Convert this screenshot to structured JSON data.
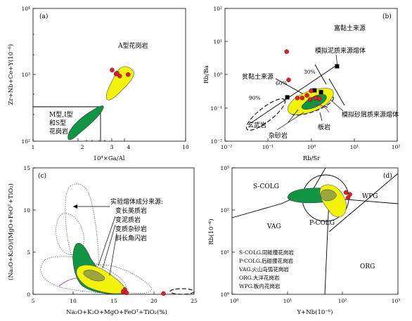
{
  "panels": {
    "a": {
      "tag": "(a)",
      "xlabel": "10⁴×Ga/Al",
      "ylabel": "Zr+Nb+Ce+Y(10⁻⁶)",
      "xticks": [
        "1",
        "2",
        "3",
        "4",
        "10"
      ],
      "yticks": [
        "10⁴",
        "10³",
        "10²"
      ],
      "field_a": "A型花岗岩",
      "field_misc": [
        "M型,I型",
        "和S型",
        "花岗岩"
      ]
    },
    "b": {
      "tag": "(b)",
      "xlabel": "Rb/Sr",
      "ylabel": "Rb/Ba",
      "xticks": [
        "10⁻²",
        "10⁻¹",
        "10⁰",
        "10¹",
        "10²"
      ],
      "yticks": [
        "10²",
        "10¹",
        "10⁰",
        "10⁻¹",
        "10⁻²"
      ],
      "labels": {
        "rich_clay": "富黏土来源",
        "poor_clay": "贫黏土来源",
        "pelite_melt": "模拟泥质来源熔体",
        "psammite_melt": "模拟砂屑质来源熔体",
        "basalt": "玄武岩",
        "greywacke": "杂砂岩",
        "slate": "板岩",
        "p30": "30%",
        "p60": "60%",
        "p90": "90%"
      }
    },
    "c": {
      "tag": "(c)",
      "xlabel": "Na₂O+K₂O+MgO+FeOᵀ+TiO₂(%)",
      "ylabel": "(Na₂O+K₂O)/(MgO+FeOᵀ+TiO₂)",
      "xticks": [
        "5",
        "10",
        "15",
        "20",
        "25"
      ],
      "yticks": [
        "0",
        "5",
        "10",
        "15"
      ],
      "legend_title": "实验熔体成分来源:",
      "legend_items": [
        "变长英质岩",
        "变泥质岩",
        "变质杂砂岩",
        "斜长角闪岩"
      ]
    },
    "d": {
      "tag": "(d)",
      "xlabel": "Y+Nb(10⁻⁶)",
      "ylabel": "Rb(10⁻⁶)",
      "xticks": [
        "10⁰",
        "10¹",
        "10²",
        "10³"
      ],
      "yticks": [
        "10³",
        "10²",
        "10¹",
        "10⁰"
      ],
      "fields": [
        "S-COLG",
        "VAG",
        "P-COLG",
        "WPG",
        "ORG"
      ],
      "legend": [
        "S-COLG.同碰撞花岗岩",
        "P-COLG.后碰撞花岗岩",
        "VAG.火山岛弧花岗岩",
        "ORG.大洋花岗岩",
        "WPG.板内花岗岩"
      ]
    }
  },
  "chart_data": [
    {
      "panel": "a",
      "type": "scatter",
      "x_scale": "log",
      "y_scale": "log",
      "xlim": [
        1,
        10
      ],
      "ylim": [
        100,
        10000
      ],
      "samples": {
        "x": [
          3.3,
          3.5,
          3.55,
          3.7,
          4.2
        ],
        "y": [
          1180,
          1030,
          1060,
          960,
          1010
        ]
      }
    },
    {
      "panel": "b",
      "type": "scatter",
      "x_scale": "log",
      "y_scale": "log",
      "xlim": [
        0.01,
        100
      ],
      "ylim": [
        0.01,
        100
      ],
      "samples": {
        "x": [
          0.3,
          0.48,
          0.62,
          0.8,
          0.95,
          1.0,
          1.3,
          1.55,
          0.27
        ],
        "y": [
          0.7,
          0.2,
          0.2,
          0.24,
          0.18,
          0.33,
          0.2,
          0.19,
          5.0
        ]
      },
      "reference": {
        "x": [
          0.28,
          1.2,
          1.7,
          4.0
        ],
        "y": [
          0.21,
          0.34,
          0.3,
          1.8
        ]
      }
    },
    {
      "panel": "c",
      "type": "scatter",
      "xlim": [
        5,
        25
      ],
      "ylim": [
        0,
        16
      ],
      "samples": {
        "x": [
          16.2,
          16.4,
          16.6,
          21.2
        ],
        "y": [
          0.35,
          0.6,
          0.2,
          0.1
        ]
      }
    },
    {
      "panel": "d",
      "type": "scatter",
      "x_scale": "log",
      "y_scale": "log",
      "xlim": [
        1,
        1000
      ],
      "ylim": [
        1,
        1000
      ],
      "samples": {
        "x": [
          115,
          125,
          135
        ],
        "y": [
          260,
          195,
          235
        ]
      }
    }
  ]
}
